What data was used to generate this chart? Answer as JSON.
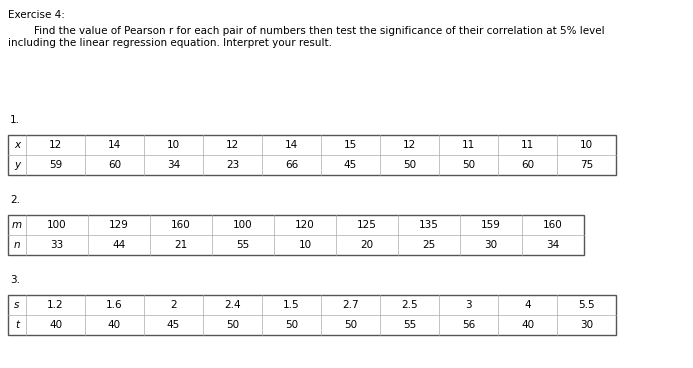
{
  "title": "Exercise 4:",
  "instruction_line1": "        Find the value of Pearson r for each pair of numbers then test the significance of their correlation at 5% level",
  "instruction_line2": "including the linear regression equation. Interpret your result.",
  "table1": {
    "label": "1.",
    "row_labels": [
      "x",
      "y"
    ],
    "data": [
      [
        12,
        14,
        10,
        12,
        14,
        15,
        12,
        11,
        11,
        10
      ],
      [
        59,
        60,
        34,
        23,
        66,
        45,
        50,
        50,
        60,
        75
      ]
    ]
  },
  "table2": {
    "label": "2.",
    "row_labels": [
      "m",
      "n"
    ],
    "data": [
      [
        100,
        129,
        160,
        100,
        120,
        125,
        135,
        159,
        160
      ],
      [
        33,
        44,
        21,
        55,
        10,
        20,
        25,
        30,
        34
      ]
    ]
  },
  "table3": {
    "label": "3.",
    "row_labels": [
      "s",
      "t"
    ],
    "data": [
      [
        1.2,
        1.6,
        2,
        2.4,
        1.5,
        2.7,
        2.5,
        3,
        4,
        5.5
      ],
      [
        40,
        40,
        45,
        50,
        50,
        50,
        55,
        56,
        40,
        30
      ]
    ]
  },
  "bg_color": "#ffffff",
  "text_color": "#000000",
  "font_size": 7.5,
  "inner_line_color": "#aaaaaa",
  "outer_line_color": "#555555",
  "outer_lw": 1.0,
  "inner_lw": 0.5
}
